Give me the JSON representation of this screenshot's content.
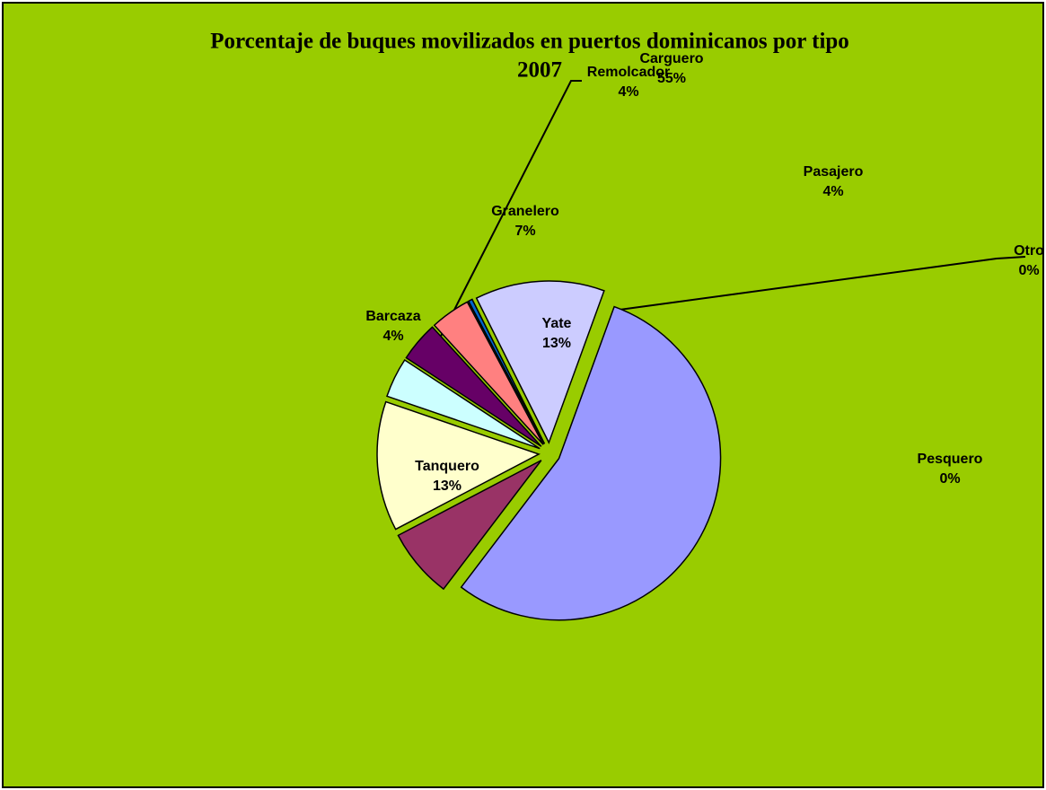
{
  "chart_data": {
    "type": "pie",
    "title": "Porcentaje de buques movilizados en puertos dominicanos por tipo",
    "subtitle": "2007",
    "categories": [
      "Carguero",
      "Granelero",
      "Tanquero",
      "Barcaza",
      "Remolcador",
      "Pasajero",
      "Pesquero",
      "Otro",
      "Yate"
    ],
    "values": [
      55,
      7,
      13,
      4,
      4,
      4,
      0,
      0.4,
      13
    ],
    "value_labels": [
      "55%",
      "7%",
      "13%",
      "4%",
      "4%",
      "4%",
      "0%",
      "0%",
      "13%"
    ],
    "colors": [
      "#9999FF",
      "#993366",
      "#FFFFCC",
      "#CCFFFF",
      "#660066",
      "#FF8080",
      "#CCCCFF",
      "#0066CC",
      "#CCCCFF"
    ]
  }
}
